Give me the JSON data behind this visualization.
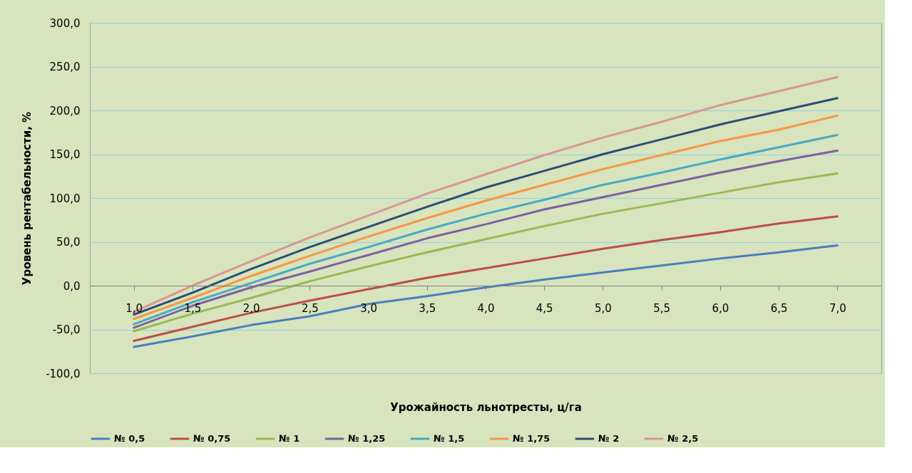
{
  "chart_data": {
    "type": "line",
    "xlabel": "Урожайность льнотресты, ц/га",
    "ylabel": "Уровень рентабельности, %",
    "categories": [
      "1,0",
      "1,5",
      "2,0",
      "2,5",
      "3,0",
      "3,5",
      "4,0",
      "4,5",
      "5,0",
      "5,5",
      "6,0",
      "6,5",
      "7,0"
    ],
    "series": [
      {
        "name": "№ 0,5",
        "color": "#4a7ebb",
        "values": [
          -70,
          -58,
          -45,
          -35,
          -21,
          -12,
          -2,
          7,
          15,
          23,
          31,
          38,
          46
        ]
      },
      {
        "name": "№ 0,75",
        "color": "#be4b48",
        "values": [
          -63,
          -47,
          -31,
          -17,
          -4,
          9,
          20,
          31,
          42,
          52,
          61,
          71,
          79
        ]
      },
      {
        "name": "№ 1",
        "color": "#98b954",
        "values": [
          -52,
          -32,
          -14,
          5,
          22,
          38,
          53,
          68,
          82,
          94,
          106,
          118,
          128
        ]
      },
      {
        "name": "№ 1,25",
        "color": "#7d60a0",
        "values": [
          -48,
          -23,
          -2,
          16,
          35,
          54,
          70,
          87,
          101,
          115,
          129,
          142,
          154
        ]
      },
      {
        "name": "№ 1,5",
        "color": "#46aac5",
        "values": [
          -44,
          -19,
          3,
          25,
          44,
          64,
          82,
          98,
          115,
          129,
          144,
          158,
          172
        ]
      },
      {
        "name": "№ 1,75",
        "color": "#f79646",
        "values": [
          -38,
          -14,
          11,
          34,
          56,
          77,
          97,
          115,
          133,
          149,
          165,
          178,
          194
        ]
      },
      {
        "name": "№ 2",
        "color": "#2c4d75",
        "values": [
          -33,
          -8,
          19,
          44,
          67,
          90,
          112,
          131,
          150,
          167,
          184,
          199,
          214
        ]
      },
      {
        "name": "№ 2,5",
        "color": "#d99694",
        "values": [
          -30,
          0,
          28,
          55,
          80,
          105,
          127,
          149,
          169,
          187,
          206,
          222,
          238
        ]
      }
    ],
    "ylim": [
      -100,
      300
    ],
    "yticks": [
      {
        "value": -100,
        "label": "-100,0"
      },
      {
        "value": -50,
        "label": "-50,0"
      },
      {
        "value": 0,
        "label": "0,0"
      },
      {
        "value": 50,
        "label": "50,0"
      },
      {
        "value": 100,
        "label": "100,0"
      },
      {
        "value": 150,
        "label": "150,0"
      },
      {
        "value": 200,
        "label": "200,0"
      },
      {
        "value": 250,
        "label": "250,0"
      },
      {
        "value": 300,
        "label": "300,0"
      }
    ],
    "grid": "y",
    "legend": "bottom",
    "marker": "none",
    "line_style": "solid"
  }
}
